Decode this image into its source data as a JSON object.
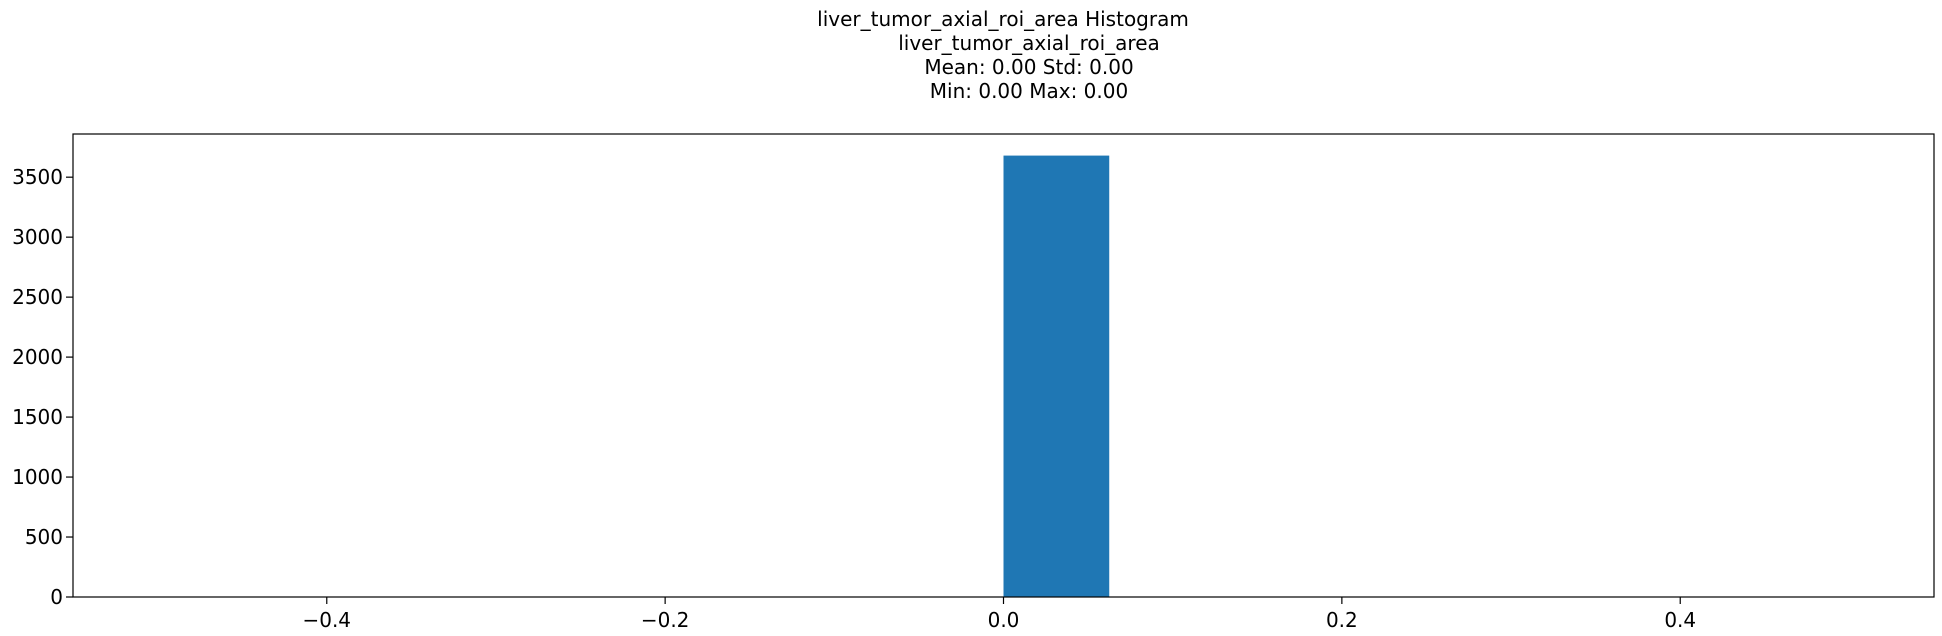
{
  "chart_data": {
    "type": "bar",
    "title_lines": [
      "liver_tumor_axial_roi_area Histogram",
      "liver_tumor_axial_roi_area",
      "Mean: 0.00 Std: 0.00",
      "Min: 0.00 Max: 0.00"
    ],
    "xlabel": "",
    "ylabel": "",
    "xlim": [
      -0.55,
      0.55
    ],
    "ylim": [
      0,
      3860
    ],
    "x_ticks": [
      {
        "value": -0.4,
        "label": "−0.4"
      },
      {
        "value": -0.2,
        "label": "−0.2"
      },
      {
        "value": 0.0,
        "label": "0.0"
      },
      {
        "value": 0.2,
        "label": "0.2"
      },
      {
        "value": 0.4,
        "label": "0.4"
      }
    ],
    "y_ticks": [
      {
        "value": 0,
        "label": "0"
      },
      {
        "value": 500,
        "label": "500"
      },
      {
        "value": 1000,
        "label": "1000"
      },
      {
        "value": 1500,
        "label": "1500"
      },
      {
        "value": 2000,
        "label": "2000"
      },
      {
        "value": 2500,
        "label": "2500"
      },
      {
        "value": 3000,
        "label": "3000"
      },
      {
        "value": 3500,
        "label": "3500"
      }
    ],
    "bins": [
      {
        "x0": 0.0,
        "x1": 0.0625,
        "count": 3680
      }
    ],
    "bar_color": "#1f77b4",
    "grid": false
  }
}
